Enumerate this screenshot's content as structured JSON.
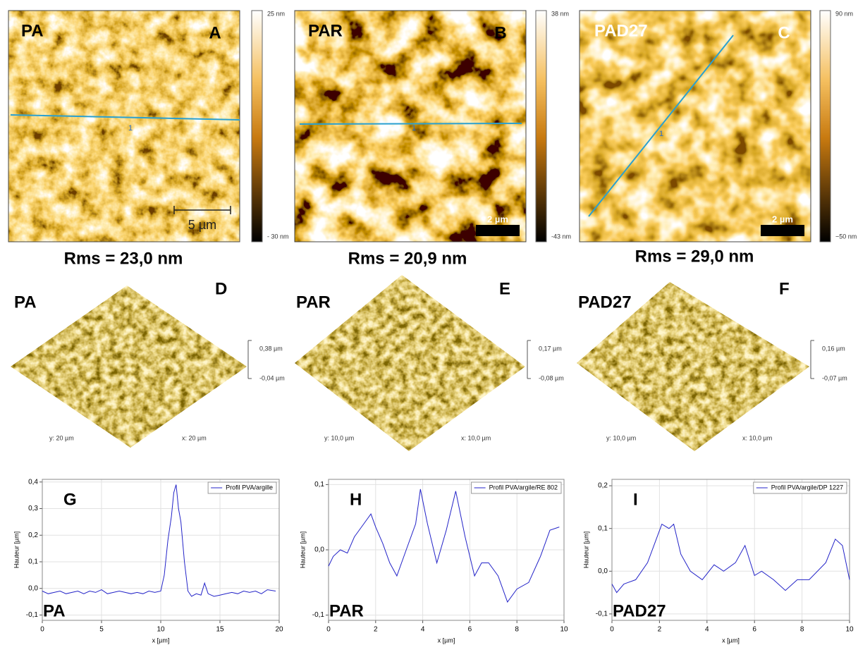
{
  "panels": [
    {
      "sample": "PA",
      "label": "A",
      "colorbar": [
        "25 nm",
        "- 30 nm"
      ],
      "scale_bar": "5 µm",
      "profile_label": "1",
      "rms": "Rms = 23,0 nm"
    },
    {
      "sample": "PAR",
      "label": "B",
      "colorbar": [
        "38 nm",
        "-43 nm"
      ],
      "scale_bar": "2 µm",
      "profile_label": "1",
      "rms": "Rms = 20,9 nm"
    },
    {
      "sample": "PAD27",
      "label": "C",
      "colorbar": [
        "90 nm",
        "−50 nm"
      ],
      "scale_bar": "2 µm",
      "profile_label": "1",
      "rms": "Rms = 29,0 nm"
    }
  ],
  "surfaces": [
    {
      "sample": "PA",
      "label": "D",
      "z_labels": [
        "0,38 µm",
        "-0,04 µm"
      ],
      "y_label": "y: 20 µm",
      "x_label": "x: 20 µm"
    },
    {
      "sample": "PAR",
      "label": "E",
      "z_labels": [
        "0,17 µm",
        "-0,08 µm"
      ],
      "y_label": "y: 10,0 µm",
      "x_label": "x: 10,0 µm"
    },
    {
      "sample": "PAD27",
      "label": "F",
      "z_labels": [
        "0,16 µm",
        "-0,07 µm"
      ],
      "y_label": "y: 10,0 µm",
      "x_label": "x: 10,0 µm"
    }
  ],
  "chart_data": [
    {
      "type": "line",
      "panel_label": "G",
      "sample_label": "PA",
      "xlabel": "x [µm]",
      "ylabel": "Hauteur [µm]",
      "xlim": [
        0,
        20
      ],
      "xticks": [
        0,
        5,
        10,
        15,
        20
      ],
      "ylim": [
        -0.12,
        0.41
      ],
      "yticks": [
        {
          "value": -0.1,
          "label": "-0,1"
        },
        {
          "value": 0,
          "label": "0,0"
        },
        {
          "value": 0.1,
          "label": "0,1"
        },
        {
          "value": 0.2,
          "label": "0,2"
        },
        {
          "value": 0.3,
          "label": "0,3"
        },
        {
          "value": 0.4,
          "label": "0,4"
        }
      ],
      "grid": true,
      "legend": "upper right",
      "x": [
        0,
        0.5,
        1,
        1.5,
        2,
        2.5,
        3,
        3.5,
        4,
        4.5,
        5,
        5.5,
        6,
        6.5,
        7,
        7.5,
        8,
        8.5,
        9,
        9.5,
        10,
        10.3,
        10.6,
        10.9,
        11.1,
        11.3,
        11.5,
        11.7,
        12,
        12.3,
        12.6,
        13,
        13.4,
        13.7,
        14,
        14.5,
        15,
        15.5,
        16,
        16.5,
        17,
        17.5,
        18,
        18.5,
        19,
        19.7
      ],
      "series": [
        {
          "name": "Profil PVA/argille",
          "color": "#2323c8",
          "values": [
            -0.01,
            -0.02,
            -0.015,
            -0.01,
            -0.02,
            -0.015,
            -0.01,
            -0.02,
            -0.01,
            -0.015,
            -0.005,
            -0.02,
            -0.015,
            -0.01,
            -0.015,
            -0.02,
            -0.015,
            -0.02,
            -0.01,
            -0.015,
            -0.01,
            0.05,
            0.18,
            0.27,
            0.36,
            0.39,
            0.3,
            0.25,
            0.1,
            -0.01,
            -0.03,
            -0.02,
            -0.025,
            0.02,
            -0.02,
            -0.03,
            -0.025,
            -0.02,
            -0.015,
            -0.02,
            -0.01,
            -0.015,
            -0.01,
            -0.02,
            -0.005,
            -0.01
          ]
        }
      ]
    },
    {
      "type": "line",
      "panel_label": "H",
      "sample_label": "PAR",
      "xlabel": "x [µm]",
      "ylabel": "Hauteur [µm]",
      "xlim": [
        0,
        10
      ],
      "xticks": [
        0,
        2,
        4,
        6,
        8,
        10
      ],
      "ylim": [
        -0.108,
        0.108
      ],
      "yticks": [
        {
          "value": -0.1,
          "label": "-0,1"
        },
        {
          "value": 0,
          "label": "0,0"
        },
        {
          "value": 0.1,
          "label": "0,1"
        }
      ],
      "grid": true,
      "legend": "upper right",
      "x": [
        0,
        0.2,
        0.5,
        0.8,
        1.1,
        1.5,
        1.8,
        2.0,
        2.3,
        2.6,
        2.9,
        3.3,
        3.7,
        3.9,
        4.2,
        4.6,
        5.0,
        5.4,
        5.8,
        6.2,
        6.5,
        6.8,
        7.2,
        7.6,
        8.0,
        8.5,
        9.0,
        9.4,
        9.8
      ],
      "series": [
        {
          "name": "Profil PVA/argile/RE 802",
          "color": "#2323c8",
          "values": [
            -0.025,
            -0.01,
            0.0,
            -0.005,
            0.02,
            0.04,
            0.055,
            0.035,
            0.01,
            -0.02,
            -0.04,
            0.0,
            0.04,
            0.093,
            0.04,
            -0.02,
            0.03,
            0.09,
            0.02,
            -0.04,
            -0.02,
            -0.02,
            -0.04,
            -0.08,
            -0.06,
            -0.05,
            -0.01,
            0.03,
            0.035
          ]
        }
      ]
    },
    {
      "type": "line",
      "panel_label": "I",
      "sample_label": "PAD27",
      "xlabel": "x [µm]",
      "ylabel": "Hauteur [µm]",
      "xlim": [
        0,
        10
      ],
      "xticks": [
        0,
        2,
        4,
        6,
        8,
        10
      ],
      "ylim": [
        -0.115,
        0.215
      ],
      "yticks": [
        {
          "value": -0.1,
          "label": "-0,1"
        },
        {
          "value": 0,
          "label": "0,0"
        },
        {
          "value": 0.1,
          "label": "0,1"
        },
        {
          "value": 0.2,
          "label": "0,2"
        }
      ],
      "grid": true,
      "legend": "upper right",
      "x": [
        0,
        0.2,
        0.5,
        1.0,
        1.5,
        1.9,
        2.1,
        2.4,
        2.6,
        2.9,
        3.3,
        3.8,
        4.3,
        4.7,
        5.2,
        5.6,
        6.0,
        6.3,
        6.8,
        7.3,
        7.8,
        8.3,
        9.0,
        9.4,
        9.7,
        10.0
      ],
      "series": [
        {
          "name": "Profil PVA/argile/DP 1227",
          "color": "#2323c8",
          "values": [
            -0.03,
            -0.05,
            -0.03,
            -0.02,
            0.02,
            0.08,
            0.11,
            0.1,
            0.11,
            0.04,
            0.0,
            -0.02,
            0.015,
            0.0,
            0.02,
            0.06,
            -0.01,
            0.0,
            -0.02,
            -0.045,
            -0.02,
            -0.02,
            0.02,
            0.075,
            0.06,
            -0.02
          ]
        }
      ]
    }
  ]
}
